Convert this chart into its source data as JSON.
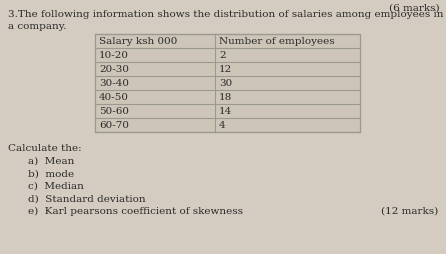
{
  "question_number": "3.",
  "intro_line1": "The following information shows the distribution of salaries among employees in",
  "intro_line2": "a company.",
  "top_right_text": "(6 marks)",
  "table_header": [
    "Salary ksh 000",
    "Number of employees"
  ],
  "table_rows": [
    [
      "10-20",
      "2"
    ],
    [
      "20-30",
      "12"
    ],
    [
      "30-40",
      "30"
    ],
    [
      "40-50",
      "18"
    ],
    [
      "50-60",
      "14"
    ],
    [
      "60-70",
      "4"
    ]
  ],
  "calculate_label": "Calculate the:",
  "sub_questions": [
    "a)  Mean",
    "b)  mode",
    "c)  Median",
    "d)  Standard deviation",
    "e)  Karl pearsons coefficient of skewness"
  ],
  "marks_text": "(12 marks)",
  "bg_color": "#d4ccc0",
  "table_bg": "#cdc5b8",
  "table_line_color": "#999990",
  "text_color": "#2a2a2a",
  "font_size": 7.5,
  "table_font_size": 7.5
}
